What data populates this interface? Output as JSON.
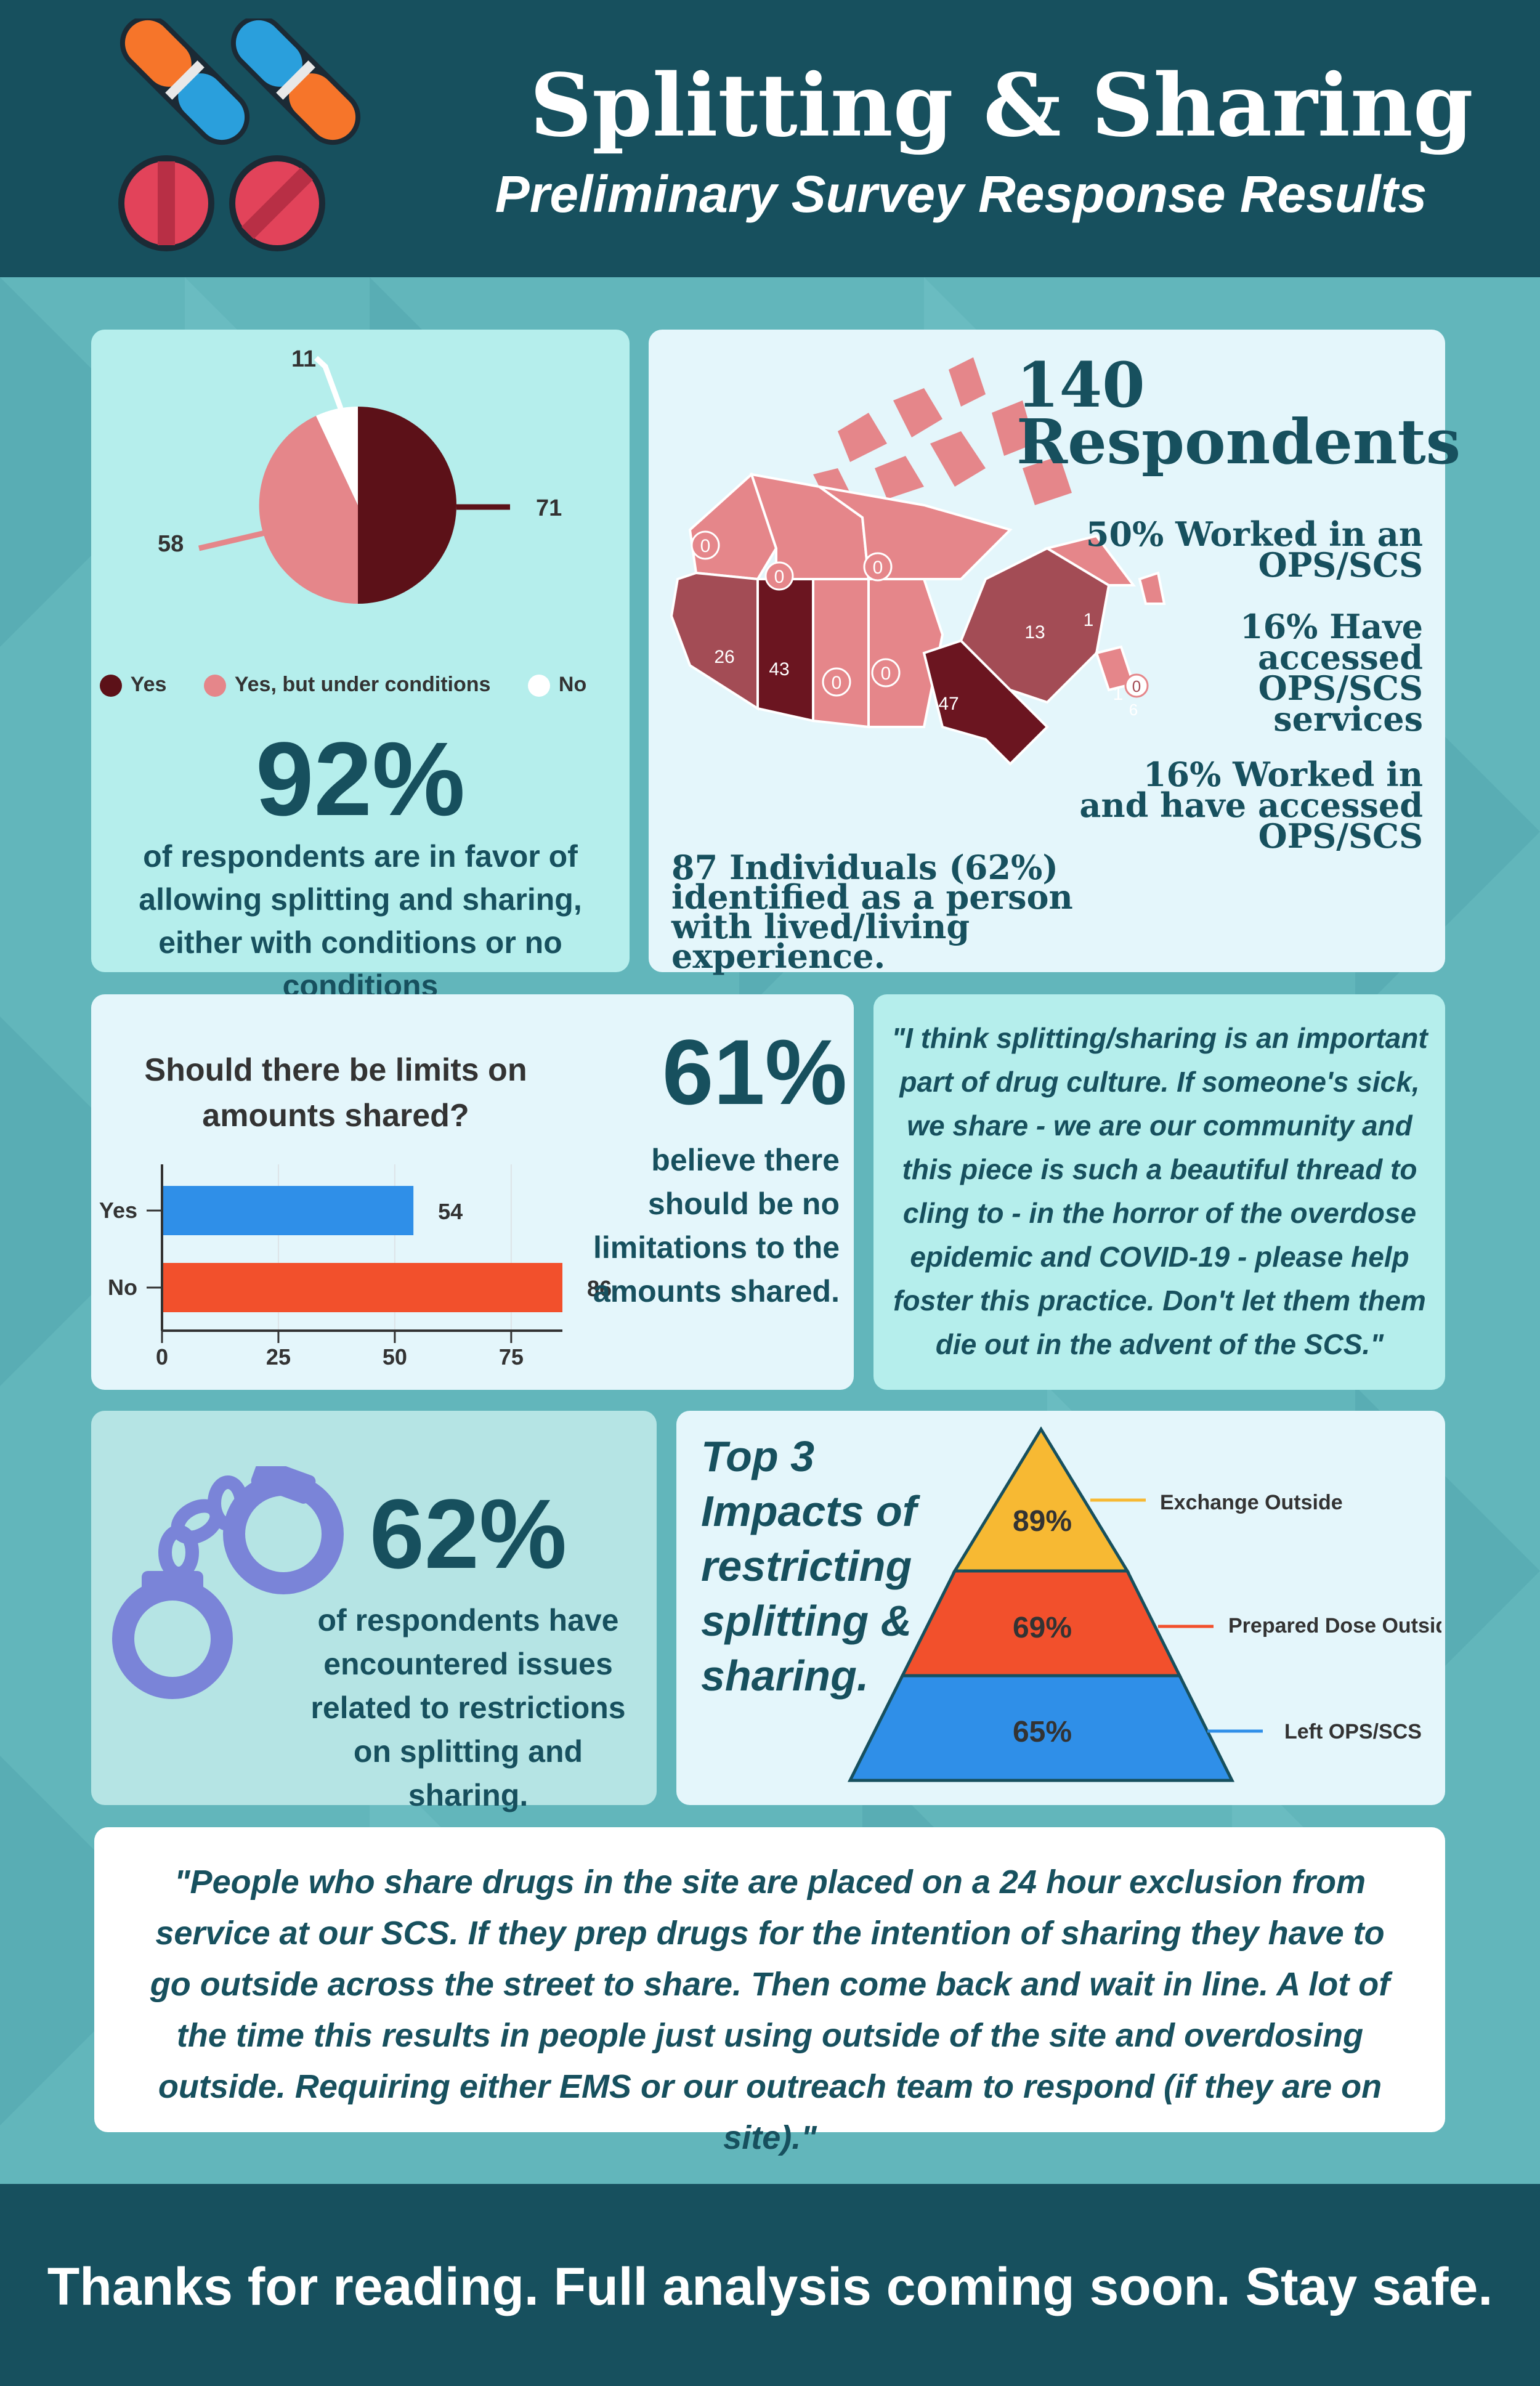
{
  "header": {
    "title": "Splitting & Sharing",
    "subtitle": "Preliminary Survey Response Results"
  },
  "favor": {
    "pie_labels": [
      "11",
      "58",
      "71"
    ],
    "legend": [
      "Yes",
      "Yes, but under conditions",
      "No"
    ],
    "big_percent": "92%",
    "caption": "of respondents are in favor of allowing splitting and sharing, either with conditions or no conditions",
    "colors": {
      "yes": "#5c1118",
      "conditions": "#e5868a",
      "no": "#ffffff"
    }
  },
  "respondents": {
    "count": "140",
    "label": "Respondents",
    "stat1": "50% Worked in an OPS/SCS",
    "stat2": "16% Have accessed OPS/SCS services",
    "stat3": "16% Worked in and have accessed OPS/SCS",
    "lived": "87 Individuals (62%) identified as a person with lived/living experience.",
    "map_numbers": {
      "yukon": "0",
      "nwt": "0",
      "nunavut": "0",
      "bc": "26",
      "ab": "43",
      "sk": "0",
      "mb": "0",
      "on": "47",
      "qc": "13",
      "nl": "1",
      "nb": "1",
      "pei": "0",
      "ns": "6"
    }
  },
  "limits": {
    "question": "Should there be limits on amounts shared?",
    "big_percent": "61%",
    "caption": "believe there should be no limitations to the amounts shared."
  },
  "chart_data": {
    "type": "bar",
    "orientation": "horizontal",
    "title": "Should there be limits on amounts shared?",
    "categories": [
      "Yes",
      "No"
    ],
    "values": [
      54,
      86
    ],
    "xlim": [
      0,
      86
    ],
    "xticks": [
      "0",
      "25",
      "50",
      "75"
    ],
    "colors": [
      "#2f8fe8",
      "#f2502c"
    ],
    "grid": false
  },
  "quote1": {
    "text": "\"I think splitting/sharing is an important part of drug culture. If someone's sick, we share - we are our community and this piece is such a beautiful thread to cling to - in the horror of the overdose epidemic and COVID-19 - please help foster this practice. Don't let them them die out in the advent of the SCS.\""
  },
  "issues": {
    "big_percent": "62%",
    "caption": "of respondents have encountered issues related to restrictions on splitting and sharing."
  },
  "impacts": {
    "title": "Top 3 Impacts of restricting splitting & sharing.",
    "tiers": [
      {
        "percent": "89%",
        "label": "Exchange Outside",
        "color": "#f7b933"
      },
      {
        "percent": "69%",
        "label": "Prepared Dose Outside",
        "color": "#f2502c"
      },
      {
        "percent": "65%",
        "label": "Left OPS/SCS",
        "color": "#2f8fe8"
      }
    ]
  },
  "quote2": {
    "text": "\"People who share drugs in the site are placed on a 24 hour exclusion from service at our SCS. If they prep drugs for the intention of sharing they have to go outside across the street to share. Then come back and wait in line. A lot of the time this results in people just using outside of the site and overdosing outside. Requiring either EMS or our outreach team to respond (if they are on site).\""
  },
  "footer": {
    "text": "Thanks for reading. Full analysis coming soon. Stay safe."
  }
}
